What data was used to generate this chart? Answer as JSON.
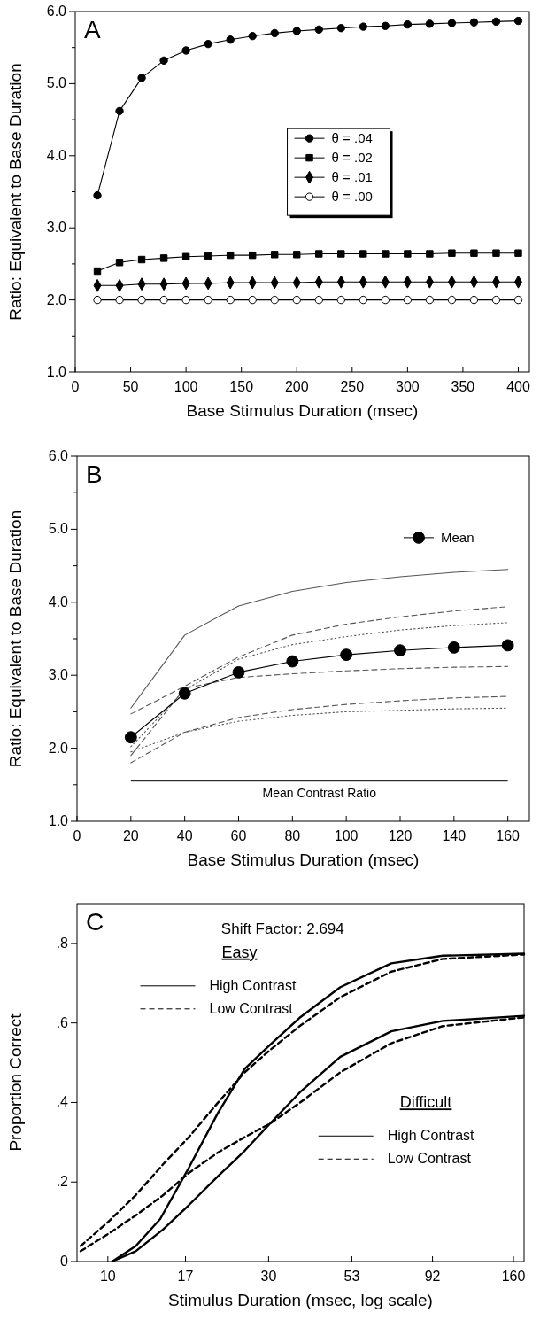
{
  "chart_data": [
    {
      "type": "line",
      "title": "A",
      "xlabel": "Base Stimulus Duration (msec)",
      "ylabel": "Ratio: Equivalent to Base Duration",
      "x": [
        20,
        40,
        60,
        80,
        100,
        120,
        140,
        160,
        180,
        200,
        220,
        240,
        260,
        280,
        300,
        320,
        340,
        360,
        380,
        400
      ],
      "xlim": [
        0,
        410
      ],
      "xticks": [
        0,
        50,
        100,
        150,
        200,
        250,
        300,
        350,
        400
      ],
      "ylim": [
        1,
        6
      ],
      "yticks": [
        {
          "value": 1,
          "label": "1.0"
        },
        {
          "value": 1.5,
          "label": null
        },
        {
          "value": 2,
          "label": "2.0"
        },
        {
          "value": 2.5,
          "label": null
        },
        {
          "value": 3,
          "label": "3.0"
        },
        {
          "value": 3.5,
          "label": null
        },
        {
          "value": 4,
          "label": "4.0"
        },
        {
          "value": 4.5,
          "label": null
        },
        {
          "value": 5,
          "label": "5.0"
        },
        {
          "value": 5.5,
          "label": null
        },
        {
          "value": 6,
          "label": "6.0"
        }
      ],
      "legend": "center",
      "series": [
        {
          "name": "θ = .04",
          "color": "#000000",
          "marker": "circle",
          "values": [
            3.45,
            4.62,
            5.08,
            5.32,
            5.46,
            5.55,
            5.61,
            5.66,
            5.7,
            5.73,
            5.75,
            5.77,
            5.79,
            5.8,
            5.82,
            5.83,
            5.84,
            5.85,
            5.86,
            5.87
          ]
        },
        {
          "name": "θ = .02",
          "color": "#000000",
          "marker": "square",
          "values": [
            2.4,
            2.52,
            2.56,
            2.58,
            2.6,
            2.61,
            2.62,
            2.62,
            2.63,
            2.63,
            2.64,
            2.64,
            2.64,
            2.64,
            2.64,
            2.64,
            2.65,
            2.65,
            2.65,
            2.65
          ]
        },
        {
          "name": "θ = .01",
          "color": "#000000",
          "marker": "diamond",
          "values": [
            2.2,
            2.2,
            2.22,
            2.22,
            2.23,
            2.23,
            2.24,
            2.24,
            2.24,
            2.24,
            2.25,
            2.25,
            2.25,
            2.25,
            2.25,
            2.25,
            2.25,
            2.25,
            2.25,
            2.25
          ]
        },
        {
          "name": "θ = .00",
          "color": "#ffffff",
          "marker": "circle",
          "values": [
            2,
            2,
            2,
            2,
            2,
            2,
            2,
            2,
            2,
            2,
            2,
            2,
            2,
            2,
            2,
            2,
            2,
            2,
            2,
            2
          ]
        }
      ]
    },
    {
      "type": "line",
      "title": "B",
      "xlabel": "Base Stimulus Duration (msec)",
      "ylabel": "Ratio: Equivalent to Base Duration",
      "x": [
        20,
        40,
        60,
        80,
        100,
        120,
        140,
        160
      ],
      "xlim": [
        0,
        168
      ],
      "xticks": [
        0,
        20,
        40,
        60,
        80,
        100,
        120,
        140,
        160
      ],
      "ylim": [
        1,
        6
      ],
      "yticks": [
        {
          "value": 1,
          "label": "1.0"
        },
        {
          "value": 1.5,
          "label": null
        },
        {
          "value": 2,
          "label": "2.0"
        },
        {
          "value": 2.5,
          "label": null
        },
        {
          "value": 3,
          "label": "3.0"
        },
        {
          "value": 3.5,
          "label": null
        },
        {
          "value": 4,
          "label": "4.0"
        },
        {
          "value": 4.5,
          "label": null
        },
        {
          "value": 5,
          "label": "5.0"
        },
        {
          "value": 5.5,
          "label": null
        },
        {
          "value": 6,
          "label": "6.0"
        }
      ],
      "legend": "top right",
      "ref_lines": [
        {
          "axis": "y",
          "value": 1.55,
          "label": "Mean Contrast Ratio",
          "color": "#000000"
        }
      ],
      "series": [
        {
          "color": "#555555",
          "line_style": "solid",
          "values": [
            2.55,
            3.55,
            3.95,
            4.15,
            4.27,
            4.35,
            4.41,
            4.45
          ]
        },
        {
          "color": "#555555",
          "line_style": "dashed",
          "values": [
            2.47,
            2.85,
            3.25,
            3.55,
            3.7,
            3.8,
            3.88,
            3.94
          ]
        },
        {
          "color": "#555555",
          "line_style": "dotted",
          "values": [
            2.02,
            2.8,
            3.22,
            3.42,
            3.53,
            3.62,
            3.68,
            3.72
          ]
        },
        {
          "color": "#555555",
          "line_style": "dashed",
          "values": [
            1.9,
            2.82,
            2.97,
            3.02,
            3.06,
            3.09,
            3.11,
            3.12
          ]
        },
        {
          "color": "#555555",
          "line_style": "dashed",
          "values": [
            1.8,
            2.22,
            2.42,
            2.53,
            2.6,
            2.65,
            2.69,
            2.71
          ]
        },
        {
          "color": "#555555",
          "line_style": "dotted",
          "values": [
            1.95,
            2.22,
            2.37,
            2.45,
            2.5,
            2.52,
            2.54,
            2.55
          ]
        },
        {
          "name": "Mean",
          "color": "#000000",
          "marker": "circle",
          "line_style": "solid",
          "values": [
            2.15,
            2.75,
            3.04,
            3.19,
            3.28,
            3.34,
            3.38,
            3.41
          ]
        }
      ]
    },
    {
      "type": "line",
      "title": "C",
      "xlabel": "Stimulus Duration (msec, log scale)",
      "ylabel": "Proportion Correct",
      "log": "x",
      "xlim": [
        8.1,
        172
      ],
      "xticks": [
        10,
        17,
        30,
        53,
        92,
        160
      ],
      "ylim": [
        0,
        0.9
      ],
      "yticks": [
        {
          "value": 0,
          "label": "0"
        },
        {
          "value": 0.2,
          "label": ".2"
        },
        {
          "value": 0.4,
          "label": ".4"
        },
        {
          "value": 0.6,
          "label": ".6"
        },
        {
          "value": 0.8,
          "label": ".8"
        }
      ],
      "legend": "top left",
      "annotations": [
        "Shift Factor: 2.694",
        "Easy",
        "Difficult"
      ],
      "series": [
        {
          "name": "High Contrast",
          "color": "#000000",
          "line_style": "solid",
          "x": [
            10.3,
            12.1,
            14.3,
            17.4,
            21.2,
            25.5,
            30.3,
            37.1,
            49,
            69.4,
            98.7,
            172
          ],
          "values": [
            0,
            0.039,
            0.107,
            0.236,
            0.373,
            0.485,
            0.545,
            0.613,
            0.69,
            0.75,
            0.769,
            0.774
          ]
        },
        {
          "name": "Low Contrast",
          "color": "#000000",
          "line_style": "dashed",
          "x": [
            8.3,
            10,
            12.1,
            14.6,
            17.4,
            21.2,
            25.5,
            30.3,
            37.1,
            49,
            69.4,
            98.7,
            172
          ],
          "values": [
            0.039,
            0.099,
            0.167,
            0.245,
            0.313,
            0.399,
            0.476,
            0.532,
            0.592,
            0.665,
            0.729,
            0.761,
            0.772
          ]
        },
        {
          "name": "High Contrast",
          "color": "#000000",
          "line_style": "solid",
          "x": [
            10.3,
            12.1,
            14.6,
            17.4,
            21.2,
            25.5,
            30.3,
            37.1,
            49,
            69.4,
            98.7,
            172
          ],
          "values": [
            0,
            0.026,
            0.081,
            0.142,
            0.214,
            0.279,
            0.347,
            0.425,
            0.515,
            0.579,
            0.605,
            0.618
          ]
        },
        {
          "name": "Low Contrast",
          "color": "#000000",
          "line_style": "dashed",
          "x": [
            8.3,
            10,
            12.1,
            14.6,
            17.4,
            21.2,
            25.5,
            30.3,
            37.1,
            49,
            69.4,
            98.7,
            172
          ],
          "values": [
            0.026,
            0.069,
            0.116,
            0.167,
            0.223,
            0.274,
            0.313,
            0.347,
            0.399,
            0.476,
            0.549,
            0.592,
            0.614
          ]
        }
      ]
    }
  ]
}
